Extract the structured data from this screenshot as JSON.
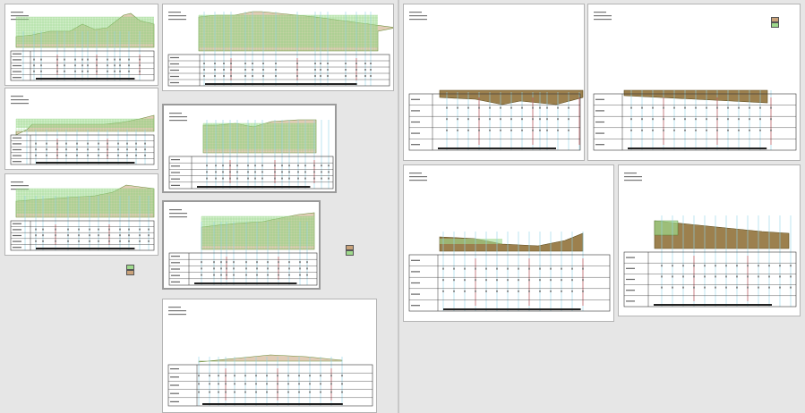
{
  "colors": {
    "canvas": "#e6e6e6",
    "sheet": "#ffffff",
    "fill": "#c9a27a",
    "fill_dark": "#8b6a2f",
    "fill_grass": "#9ed98c",
    "grid_green": "#7ccf6e",
    "station_line": "#8fd3e8",
    "marker_red": "#d23b3b",
    "table_line": "#333333"
  },
  "icons": [
    "section-profile-icon",
    "legend-swatch-icon"
  ],
  "sheets": [
    {
      "style": "green-grid",
      "stations": [
        20,
        32,
        40,
        58,
        66,
        78,
        86,
        92,
        102,
        114,
        122,
        128,
        138,
        150
      ],
      "profile": [
        [
          12,
          36
        ],
        [
          30,
          34
        ],
        [
          50,
          30
        ],
        [
          72,
          30
        ],
        [
          86,
          22
        ],
        [
          100,
          28
        ],
        [
          114,
          26
        ],
        [
          132,
          12
        ],
        [
          140,
          10
        ],
        [
          150,
          18
        ],
        [
          166,
          22
        ]
      ]
    },
    {
      "style": "green-grid",
      "stations": [
        24,
        34,
        46,
        58,
        68,
        80,
        92,
        104,
        114,
        126,
        136,
        146,
        156
      ],
      "profile": [
        [
          12,
          52
        ],
        [
          24,
          46
        ],
        [
          30,
          40
        ],
        [
          52,
          40
        ],
        [
          80,
          40
        ],
        [
          110,
          40
        ],
        [
          130,
          38
        ],
        [
          150,
          34
        ],
        [
          166,
          30
        ]
      ]
    },
    {
      "style": "green-grid",
      "stations": [
        22,
        34,
        42,
        56,
        70,
        82,
        94,
        104,
        116,
        128,
        138,
        150,
        160
      ],
      "profile": [
        [
          12,
          30
        ],
        [
          40,
          28
        ],
        [
          70,
          26
        ],
        [
          100,
          24
        ],
        [
          120,
          20
        ],
        [
          135,
          12
        ],
        [
          150,
          14
        ],
        [
          166,
          16
        ]
      ]
    },
    {
      "style": "green-band",
      "stations": [
        46,
        58,
        68,
        76,
        92,
        100,
        112,
        126,
        150,
        170,
        176,
        184,
        204,
        216,
        226,
        232
      ],
      "profile": [
        [
          40,
          14
        ],
        [
          60,
          12
        ],
        [
          80,
          12
        ],
        [
          100,
          8
        ],
        [
          110,
          8
        ],
        [
          130,
          10
        ],
        [
          150,
          12
        ],
        [
          170,
          14
        ],
        [
          200,
          18
        ],
        [
          230,
          22
        ],
        [
          260,
          26
        ],
        [
          240,
          30
        ]
      ]
    },
    {
      "style": "green-thin",
      "stations": [
        48,
        58,
        66,
        74,
        82,
        94,
        102,
        110,
        124,
        132,
        140,
        150,
        158,
        168,
        176,
        184
      ],
      "profile": [
        [
          44,
          22
        ],
        [
          60,
          22
        ],
        [
          80,
          20
        ],
        [
          100,
          24
        ],
        [
          120,
          18
        ],
        [
          150,
          16
        ],
        [
          170,
          16
        ]
      ]
    },
    {
      "style": "green-thin",
      "stations": [
        42,
        56,
        64,
        70,
        78,
        92,
        104,
        116,
        128,
        140,
        152,
        160
      ],
      "profile": [
        [
          42,
          28
        ],
        [
          60,
          26
        ],
        [
          80,
          24
        ],
        [
          110,
          22
        ],
        [
          130,
          18
        ],
        [
          150,
          14
        ],
        [
          168,
          12
        ]
      ]
    },
    {
      "style": "dotted",
      "stations": [
        40,
        52,
        62,
        70,
        80,
        92,
        104,
        116,
        128,
        140,
        152,
        164,
        176,
        188,
        200
      ],
      "profile": [
        [
          40,
          70
        ],
        [
          80,
          66
        ],
        [
          120,
          62
        ],
        [
          160,
          64
        ],
        [
          200,
          68
        ]
      ]
    },
    {
      "style": "brown",
      "stations": [
        48,
        60,
        72,
        84,
        96,
        108,
        120,
        132,
        144,
        152,
        160,
        172,
        184,
        196
      ],
      "profile": [
        [
          40,
          104
        ],
        [
          80,
          106
        ],
        [
          110,
          112
        ],
        [
          130,
          108
        ],
        [
          170,
          112
        ],
        [
          200,
          104
        ]
      ]
    },
    {
      "style": "brown",
      "stations": [
        48,
        60,
        72,
        84,
        96,
        108,
        120,
        132,
        144,
        156,
        168,
        180,
        192,
        204
      ],
      "profile": [
        [
          40,
          102
        ],
        [
          80,
          104
        ],
        [
          120,
          106
        ],
        [
          160,
          108
        ],
        [
          200,
          110
        ]
      ]
    },
    {
      "style": "brown-cut",
      "stations": [
        44,
        56,
        68,
        80,
        92,
        104,
        116,
        128,
        140,
        152,
        164,
        176,
        188,
        200
      ],
      "profile": [
        [
          40,
          80
        ],
        [
          80,
          82
        ],
        [
          110,
          88
        ],
        [
          150,
          90
        ],
        [
          180,
          84
        ],
        [
          200,
          76
        ]
      ]
    },
    {
      "style": "brown-wedge",
      "stations": [
        48,
        60,
        72,
        84,
        96,
        108,
        120,
        132,
        144,
        156,
        168,
        180,
        192
      ],
      "profile": [
        [
          40,
          62
        ],
        [
          80,
          66
        ],
        [
          120,
          70
        ],
        [
          160,
          74
        ],
        [
          190,
          76
        ]
      ]
    }
  ]
}
